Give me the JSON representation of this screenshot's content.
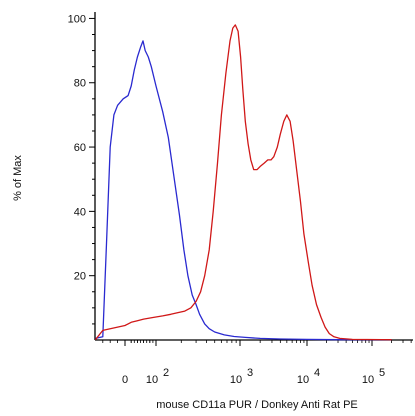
{
  "chart_data": {
    "type": "line",
    "title": "",
    "xlabel": "mouse CD11a PUR / Donkey Anti Rat PE",
    "ylabel": "% of Max",
    "x_scale": "biexponential",
    "x_ticks": [
      {
        "value": 0,
        "base": "0",
        "exp": ""
      },
      {
        "value": 100,
        "base": "10",
        "exp": "2"
      },
      {
        "value": 1000,
        "base": "10",
        "exp": "3"
      },
      {
        "value": 10000,
        "base": "10",
        "exp": "4"
      },
      {
        "value": 100000,
        "base": "10",
        "exp": "5"
      }
    ],
    "y_ticks": [
      20,
      40,
      60,
      80,
      100
    ],
    "ylim": [
      0,
      102
    ],
    "grid": false,
    "legend": "none",
    "series": [
      {
        "color": "#2a2ad0",
        "points": [
          [
            -80,
            0.5
          ],
          [
            -60,
            1
          ],
          [
            -50,
            30
          ],
          [
            -40,
            60
          ],
          [
            -30,
            70
          ],
          [
            -20,
            73
          ],
          [
            -5,
            75
          ],
          [
            10,
            76
          ],
          [
            20,
            79
          ],
          [
            30,
            84
          ],
          [
            40,
            88
          ],
          [
            50,
            91
          ],
          [
            58,
            93
          ],
          [
            65,
            90
          ],
          [
            75,
            88
          ],
          [
            85,
            85
          ],
          [
            100,
            79
          ],
          [
            120,
            71
          ],
          [
            140,
            63
          ],
          [
            165,
            50
          ],
          [
            190,
            39
          ],
          [
            215,
            28
          ],
          [
            240,
            20
          ],
          [
            270,
            14
          ],
          [
            300,
            11
          ],
          [
            330,
            8
          ],
          [
            380,
            5
          ],
          [
            430,
            3.5
          ],
          [
            500,
            2.5
          ],
          [
            650,
            1.6
          ],
          [
            850,
            1.1
          ],
          [
            1200,
            0.8
          ],
          [
            2000,
            0.5
          ],
          [
            4000,
            0.3
          ],
          [
            10000,
            0.2
          ],
          [
            30000,
            0.1
          ],
          [
            200000,
            0.1
          ]
        ]
      },
      {
        "color": "#d01818",
        "points": [
          [
            -80,
            0.1
          ],
          [
            -60,
            3
          ],
          [
            -40,
            3.5
          ],
          [
            -20,
            4
          ],
          [
            0,
            4.5
          ],
          [
            20,
            5.5
          ],
          [
            40,
            6
          ],
          [
            60,
            6.5
          ],
          [
            90,
            7
          ],
          [
            120,
            7.5
          ],
          [
            150,
            8
          ],
          [
            180,
            8.5
          ],
          [
            220,
            9
          ],
          [
            260,
            10
          ],
          [
            300,
            12
          ],
          [
            340,
            15
          ],
          [
            380,
            20
          ],
          [
            430,
            28
          ],
          [
            480,
            40
          ],
          [
            540,
            55
          ],
          [
            600,
            70
          ],
          [
            680,
            83
          ],
          [
            760,
            93
          ],
          [
            820,
            97
          ],
          [
            880,
            98
          ],
          [
            950,
            96
          ],
          [
            1020,
            88
          ],
          [
            1100,
            78
          ],
          [
            1200,
            68
          ],
          [
            1320,
            61
          ],
          [
            1450,
            56
          ],
          [
            1600,
            53
          ],
          [
            1800,
            53
          ],
          [
            2000,
            54
          ],
          [
            2300,
            55
          ],
          [
            2600,
            56
          ],
          [
            2900,
            56
          ],
          [
            3200,
            57
          ],
          [
            3600,
            60
          ],
          [
            4000,
            64
          ],
          [
            4500,
            68
          ],
          [
            5000,
            70
          ],
          [
            5600,
            68
          ],
          [
            6200,
            62
          ],
          [
            7000,
            53
          ],
          [
            8000,
            43
          ],
          [
            9000,
            33
          ],
          [
            10500,
            24
          ],
          [
            12000,
            17
          ],
          [
            14000,
            11
          ],
          [
            16500,
            7
          ],
          [
            19000,
            4
          ],
          [
            22000,
            2
          ],
          [
            26000,
            1
          ],
          [
            32000,
            0.5
          ],
          [
            50000,
            0.2
          ],
          [
            200000,
            0.1
          ]
        ]
      }
    ]
  }
}
